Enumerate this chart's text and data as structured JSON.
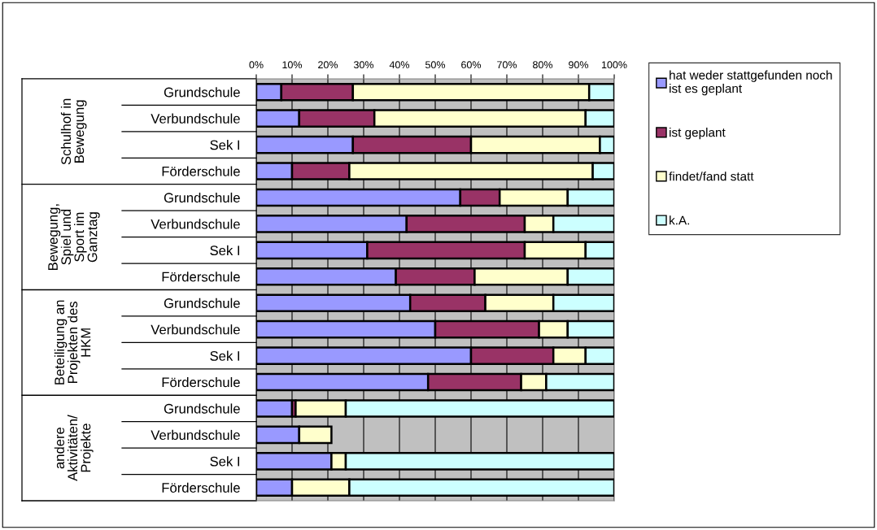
{
  "chart_data": {
    "type": "bar",
    "orientation": "horizontal",
    "stacked": true,
    "categories": [
      "Grundschule",
      "Verbundschule",
      "Sek I",
      "Förderschule",
      "Grundschule",
      "Verbundschule",
      "Sek I",
      "Förderschule",
      "Grundschule",
      "Verbundschule",
      "Sek I",
      "Förderschule",
      "Grundschule",
      "Verbundschule",
      "Sek I",
      "Förderschule"
    ],
    "series": [
      {
        "name": "hat weder stattgefunden noch\nist es geplant",
        "color": "#9999ff",
        "values": [
          7,
          12,
          27,
          10,
          57,
          42,
          31,
          39,
          43,
          50,
          60,
          48,
          10,
          12,
          21,
          10
        ]
      },
      {
        "name": "ist geplant",
        "color": "#993366",
        "values": [
          20,
          21,
          33,
          16,
          11,
          33,
          44,
          22,
          21,
          29,
          23,
          26,
          1,
          null,
          null,
          null
        ]
      },
      {
        "name": "findet/fand statt",
        "color": "#ffffcc",
        "values": [
          66,
          59,
          36,
          68,
          19,
          8,
          17,
          26,
          19,
          8,
          9,
          7,
          14,
          9,
          4,
          16
        ]
      },
      {
        "name": "k.A.",
        "color": "#ccffff",
        "values": [
          7,
          8,
          4,
          6,
          13,
          17,
          8,
          13,
          17,
          13,
          8,
          19,
          75,
          null,
          75,
          74
        ]
      }
    ],
    "xlim": [
      0,
      100
    ],
    "xticks": [
      {
        "value": 0,
        "label": "0%"
      },
      {
        "value": 10,
        "label": "10%"
      },
      {
        "value": 20,
        "label": "20%"
      },
      {
        "value": 30,
        "label": "30%"
      },
      {
        "value": 40,
        "label": "40%"
      },
      {
        "value": 50,
        "label": "50%"
      },
      {
        "value": 60,
        "label": "60%"
      },
      {
        "value": 70,
        "label": "70%"
      },
      {
        "value": 80,
        "label": "80%"
      },
      {
        "value": 90,
        "label": "90%"
      },
      {
        "value": 100,
        "label": "100%"
      }
    ],
    "grid": "x",
    "legend": "right",
    "annotations": [
      "Schulhof in\nBewegung",
      "Bewegung,\nSpiel und\nSport im\nGanztag",
      "Beteiligung an\nProjekten des\nHKM",
      "andere\nAktivitäten/\nProjekte"
    ]
  }
}
